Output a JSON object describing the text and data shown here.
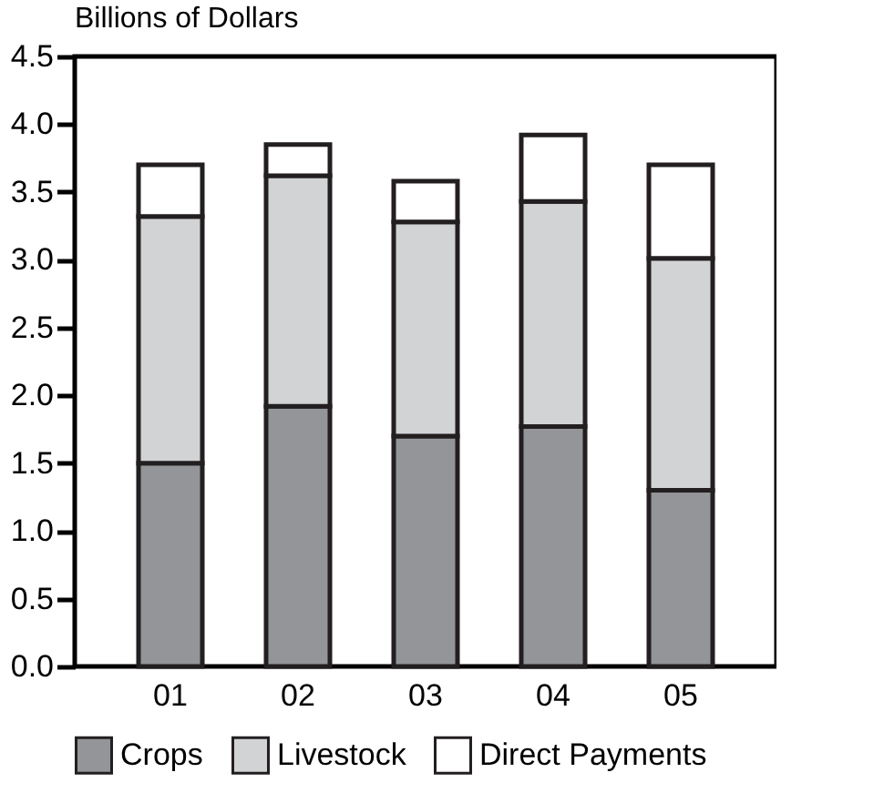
{
  "chart_data": {
    "type": "bar",
    "stacked": true,
    "ylabel": "Billions of Dollars",
    "categories": [
      "01",
      "02",
      "03",
      "04",
      "05"
    ],
    "series": [
      {
        "name": "Crops",
        "color": "#939598",
        "values": [
          1.5,
          1.92,
          1.7,
          1.77,
          1.3
        ]
      },
      {
        "name": "Livestock",
        "color": "#d1d3d4",
        "values": [
          1.82,
          1.7,
          1.58,
          1.66,
          1.71
        ]
      },
      {
        "name": "Direct Payments",
        "color": "#ffffff",
        "values": [
          0.38,
          0.23,
          0.3,
          0.49,
          0.69
        ]
      }
    ],
    "ylim": [
      0,
      4.5
    ],
    "yticks": [
      {
        "value": 0,
        "label": "0.0"
      },
      0.5,
      {
        "value": 1,
        "label": "1.0"
      },
      1.5,
      {
        "value": 2,
        "label": "2.0"
      },
      2.5,
      {
        "value": 3,
        "label": "3.0"
      },
      3.5,
      {
        "value": 4,
        "label": "4.0"
      },
      4.5
    ],
    "legend": "bottom",
    "grid": false
  }
}
